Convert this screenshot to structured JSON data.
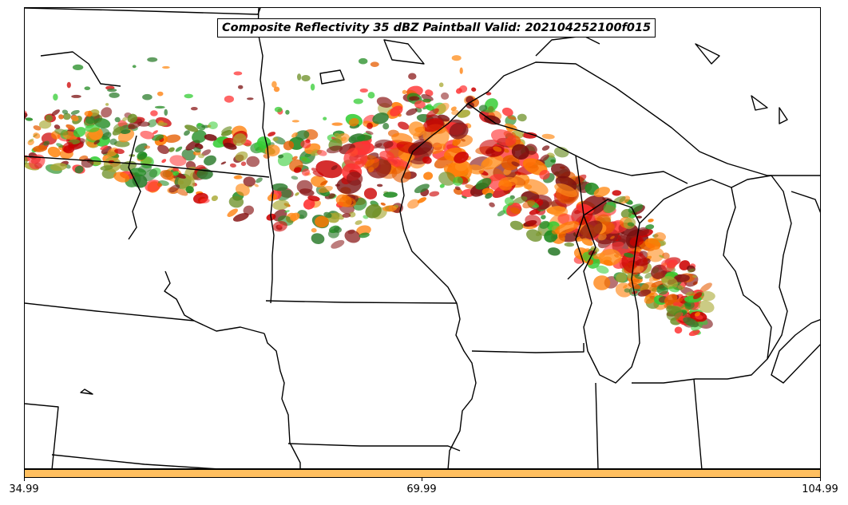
{
  "title": "Composite Reflectivity 35 dBZ Paintball Valid: 202104252100f015",
  "colorbar": {
    "color": "#ffbf5f",
    "ticks": [
      "34.99",
      "69.99",
      "104.99"
    ]
  },
  "member_colors": [
    "#2e7d2e",
    "#6b8e23",
    "#a8a832",
    "#228b22",
    "#33cc33",
    "#ff8c1a",
    "#ff7a00",
    "#e65c00",
    "#cc0000",
    "#ff3333",
    "#8b1a1a",
    "#7a0f0f"
  ],
  "map": {
    "outline_color": "#000000",
    "background_color": "#ffffff"
  }
}
